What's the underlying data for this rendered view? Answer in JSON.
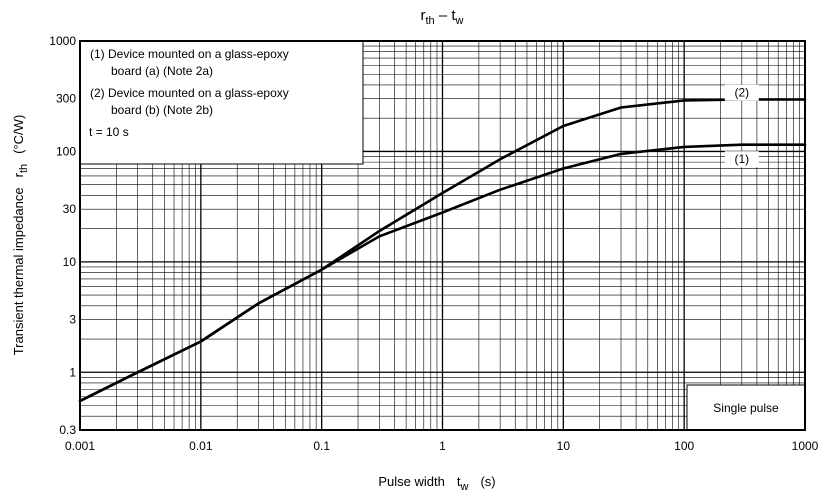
{
  "chart_data": {
    "type": "line",
    "title": {
      "main": "r",
      "main_sub": "th",
      "sep": " – ",
      "var": "t",
      "var_sub": "w"
    },
    "xlabel": {
      "text": "Pulse width",
      "sym": "t",
      "sym_sub": "w",
      "unit": "(s)"
    },
    "ylabel": {
      "text": "Transient thermal impedance",
      "sym": "r",
      "sym_sub": "th",
      "unit": "(°C/W)"
    },
    "x_scale": "log",
    "y_scale": "log",
    "xlim": [
      0.001,
      1000
    ],
    "ylim": [
      0.3,
      1000
    ],
    "x_ticks": [
      {
        "v": 0.001,
        "label": "0.001"
      },
      {
        "v": 0.01,
        "label": "0.01"
      },
      {
        "v": 0.1,
        "label": "0.1"
      },
      {
        "v": 1,
        "label": "1"
      },
      {
        "v": 10,
        "label": "10"
      },
      {
        "v": 100,
        "label": "100"
      },
      {
        "v": 1000,
        "label": "1000"
      }
    ],
    "y_ticks": [
      {
        "v": 0.3,
        "label": "0.3"
      },
      {
        "v": 1,
        "label": "1"
      },
      {
        "v": 3,
        "label": "3"
      },
      {
        "v": 10,
        "label": "10"
      },
      {
        "v": 30,
        "label": "30"
      },
      {
        "v": 100,
        "label": "100"
      },
      {
        "v": 300,
        "label": "300"
      },
      {
        "v": 1000,
        "label": "1000"
      }
    ],
    "grid": true,
    "series": [
      {
        "name": "(1)",
        "label_at": {
          "x": 300,
          "y": 85
        },
        "x": [
          0.001,
          0.003,
          0.01,
          0.03,
          0.1,
          0.3,
          1,
          3,
          10,
          30,
          100,
          300,
          1000
        ],
        "y": [
          0.55,
          1.0,
          1.9,
          4.2,
          8.5,
          17,
          28,
          45,
          70,
          95,
          110,
          115,
          115
        ]
      },
      {
        "name": "(2)",
        "label_at": {
          "x": 300,
          "y": 340
        },
        "x": [
          0.001,
          0.003,
          0.01,
          0.03,
          0.1,
          0.3,
          1,
          3,
          10,
          30,
          100,
          300,
          1000
        ],
        "y": [
          0.55,
          1.0,
          1.9,
          4.2,
          8.5,
          19,
          42,
          85,
          170,
          250,
          290,
          295,
          295
        ]
      }
    ],
    "notes": [
      "(1) Device mounted on a glass-epoxy",
      "board (a) (Note 2a)",
      "(2) Device mounted on a glass-epoxy",
      "board (b) (Note 2b)",
      "t = 10 s"
    ],
    "annotation": "Single pulse"
  }
}
